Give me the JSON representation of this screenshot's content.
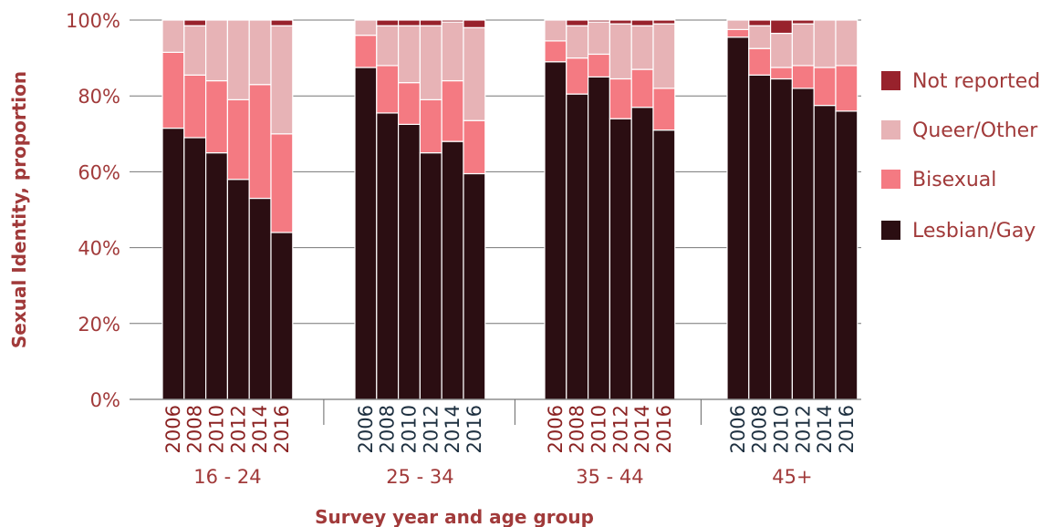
{
  "chart_data": {
    "type": "bar",
    "stacked": true,
    "title": "",
    "xlabel": "Survey year and age group",
    "ylabel": "Sexual Identity, proportion",
    "ylim": [
      0,
      100
    ],
    "yticks": [
      "0%",
      "20%",
      "40%",
      "60%",
      "80%",
      "100%"
    ],
    "grid": true,
    "legend_position": "right",
    "years": [
      "2006",
      "2008",
      "2010",
      "2012",
      "2014",
      "2016"
    ],
    "groups": [
      {
        "label": "16 - 24",
        "year_color": "#8b2323",
        "bars": [
          {
            "lesbian_gay": 71.5,
            "bisexual": 20.0,
            "queer_other": 8.5,
            "not_reported": 0.0
          },
          {
            "lesbian_gay": 69.0,
            "bisexual": 16.5,
            "queer_other": 13.0,
            "not_reported": 1.5
          },
          {
            "lesbian_gay": 65.0,
            "bisexual": 19.0,
            "queer_other": 16.0,
            "not_reported": 0.0
          },
          {
            "lesbian_gay": 58.0,
            "bisexual": 21.0,
            "queer_other": 21.0,
            "not_reported": 0.0
          },
          {
            "lesbian_gay": 53.0,
            "bisexual": 30.0,
            "queer_other": 17.0,
            "not_reported": 0.0
          },
          {
            "lesbian_gay": 44.0,
            "bisexual": 26.0,
            "queer_other": 28.5,
            "not_reported": 1.5
          }
        ]
      },
      {
        "label": "25 - 34",
        "year_color": "#1e3040",
        "bars": [
          {
            "lesbian_gay": 87.5,
            "bisexual": 8.5,
            "queer_other": 4.0,
            "not_reported": 0.0
          },
          {
            "lesbian_gay": 75.5,
            "bisexual": 12.5,
            "queer_other": 10.5,
            "not_reported": 1.5
          },
          {
            "lesbian_gay": 72.5,
            "bisexual": 11.0,
            "queer_other": 15.0,
            "not_reported": 1.5
          },
          {
            "lesbian_gay": 65.0,
            "bisexual": 14.0,
            "queer_other": 19.5,
            "not_reported": 1.5
          },
          {
            "lesbian_gay": 68.0,
            "bisexual": 16.0,
            "queer_other": 15.5,
            "not_reported": 0.5
          },
          {
            "lesbian_gay": 59.5,
            "bisexual": 14.0,
            "queer_other": 24.5,
            "not_reported": 2.0
          }
        ]
      },
      {
        "label": "35 - 44",
        "year_color": "#8b2323",
        "bars": [
          {
            "lesbian_gay": 89.0,
            "bisexual": 5.5,
            "queer_other": 5.5,
            "not_reported": 0.0
          },
          {
            "lesbian_gay": 80.5,
            "bisexual": 9.5,
            "queer_other": 8.5,
            "not_reported": 1.5
          },
          {
            "lesbian_gay": 85.0,
            "bisexual": 6.0,
            "queer_other": 8.5,
            "not_reported": 0.5
          },
          {
            "lesbian_gay": 74.0,
            "bisexual": 10.5,
            "queer_other": 14.5,
            "not_reported": 1.0
          },
          {
            "lesbian_gay": 77.0,
            "bisexual": 10.0,
            "queer_other": 11.5,
            "not_reported": 1.5
          },
          {
            "lesbian_gay": 71.0,
            "bisexual": 11.0,
            "queer_other": 17.0,
            "not_reported": 1.0
          }
        ]
      },
      {
        "label": "45+",
        "year_color": "#1e3040",
        "bars": [
          {
            "lesbian_gay": 95.5,
            "bisexual": 2.0,
            "queer_other": 2.5,
            "not_reported": 0.0
          },
          {
            "lesbian_gay": 85.5,
            "bisexual": 7.0,
            "queer_other": 6.0,
            "not_reported": 1.5
          },
          {
            "lesbian_gay": 84.5,
            "bisexual": 3.0,
            "queer_other": 9.0,
            "not_reported": 3.5
          },
          {
            "lesbian_gay": 82.0,
            "bisexual": 6.0,
            "queer_other": 11.0,
            "not_reported": 1.0
          },
          {
            "lesbian_gay": 77.5,
            "bisexual": 10.0,
            "queer_other": 12.5,
            "not_reported": 0.0
          },
          {
            "lesbian_gay": 76.0,
            "bisexual": 12.0,
            "queer_other": 12.0,
            "not_reported": 0.0
          }
        ]
      }
    ],
    "series": [
      {
        "key": "lesbian_gay",
        "name": "Lesbian/Gay",
        "color": "#2b0e12"
      },
      {
        "key": "bisexual",
        "name": "Bisexual",
        "color": "#f47a82"
      },
      {
        "key": "queer_other",
        "name": "Queer/Other",
        "color": "#e7b3b6"
      },
      {
        "key": "not_reported",
        "name": "Not reported",
        "color": "#98222c"
      }
    ],
    "legend_order": [
      "not_reported",
      "queer_other",
      "bisexual",
      "lesbian_gay"
    ],
    "colors": {
      "axis_text": "#a13a3a",
      "grid": "#777777"
    }
  }
}
